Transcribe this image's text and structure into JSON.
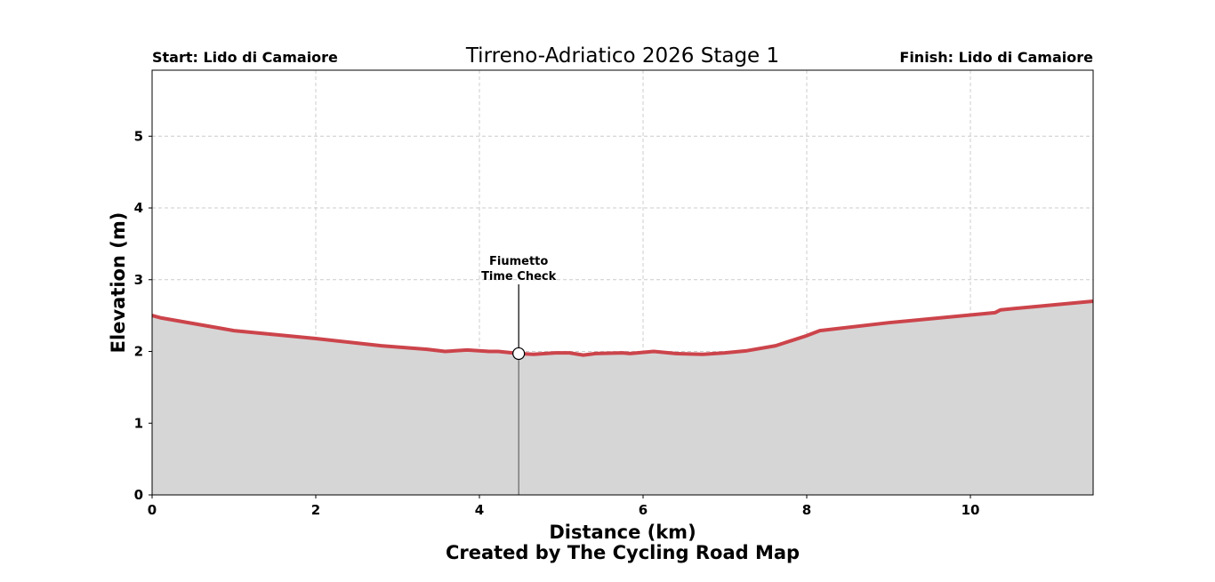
{
  "chart_data": {
    "type": "area",
    "title": "Tirreno-Adriatico 2026 Stage 1",
    "start_label": "Start: Lido di Camaiore",
    "finish_label": "Finish: Lido di Camaiore",
    "xlabel": "Distance (km)",
    "ylabel": "Elevation (m)",
    "credit": "Created by The Cycling Road Map",
    "xlim": [
      0,
      11.5
    ],
    "ylim": [
      0,
      5.92
    ],
    "xticks": [
      0,
      2,
      4,
      6,
      8,
      10
    ],
    "yticks": [
      0,
      1,
      2,
      3,
      4,
      5
    ],
    "grid": true,
    "line_color": "#cc444b",
    "fill_color": "#d6d6d6",
    "x": [
      0,
      0.1,
      1.0,
      2.0,
      2.8,
      3.36,
      3.58,
      3.85,
      4.12,
      4.23,
      4.48,
      4.66,
      4.93,
      5.1,
      5.27,
      5.42,
      5.75,
      5.84,
      6.13,
      6.4,
      6.73,
      7.0,
      7.27,
      7.62,
      8.0,
      8.16,
      9.0,
      10.3,
      10.37,
      11.5
    ],
    "y": [
      2.5,
      2.47,
      2.29,
      2.18,
      2.08,
      2.03,
      2.0,
      2.02,
      2.0,
      2.0,
      1.97,
      1.96,
      1.98,
      1.98,
      1.95,
      1.97,
      1.98,
      1.97,
      2.0,
      1.97,
      1.96,
      1.98,
      2.01,
      2.08,
      2.22,
      2.29,
      2.4,
      2.54,
      2.58,
      2.7
    ],
    "annotations": [
      {
        "label_line1": "Fiumetto",
        "label_line2": "Time Check",
        "x": 4.48,
        "y": 1.97
      }
    ]
  }
}
